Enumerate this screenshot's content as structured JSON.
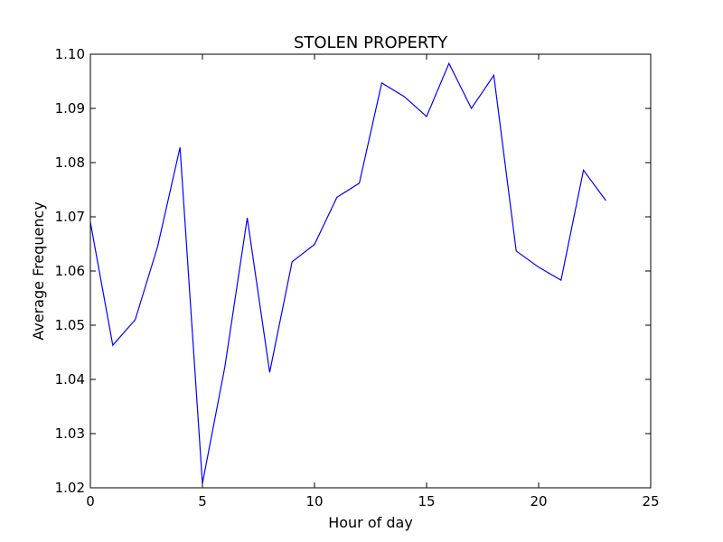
{
  "chart_data": {
    "type": "line",
    "title": "STOLEN PROPERTY",
    "xlabel": "Hour of day",
    "ylabel": "Average Frequency",
    "xlim": [
      0,
      25
    ],
    "ylim": [
      1.02,
      1.1
    ],
    "xticks": [
      0,
      5,
      10,
      15,
      20,
      25
    ],
    "yticks": [
      1.02,
      1.03,
      1.04,
      1.05,
      1.06,
      1.07,
      1.08,
      1.09,
      1.1
    ],
    "xtick_labels": [
      "0",
      "5",
      "10",
      "15",
      "20",
      "25"
    ],
    "ytick_labels": [
      "1.02",
      "1.03",
      "1.04",
      "1.05",
      "1.06",
      "1.07",
      "1.08",
      "1.09",
      "1.10"
    ],
    "grid": false,
    "series": [
      {
        "color": "#0000ff",
        "x": [
          0,
          1,
          2,
          3,
          4,
          5,
          6,
          7,
          8,
          9,
          10,
          11,
          12,
          13,
          14,
          15,
          16,
          17,
          18,
          19,
          20,
          21,
          22,
          23
        ],
        "y": [
          1.069,
          1.0463,
          1.051,
          1.0645,
          1.0828,
          1.0208,
          1.0423,
          1.0698,
          1.0413,
          1.0617,
          1.0649,
          1.0736,
          1.0762,
          1.0947,
          1.0922,
          1.0885,
          1.0983,
          1.09,
          1.0961,
          1.0637,
          1.0607,
          1.0583,
          1.0786,
          1.073
        ]
      }
    ]
  }
}
